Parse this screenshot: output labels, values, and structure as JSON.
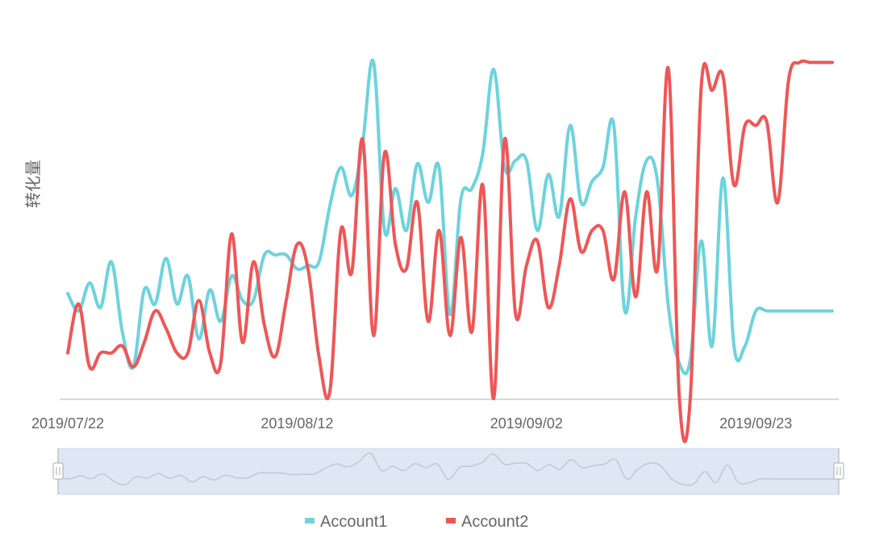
{
  "chart_data": {
    "type": "line",
    "ylabel": "转化量",
    "xlabel": "",
    "title": "",
    "grid": false,
    "legend_position": "bottom-center",
    "x_ticks": [
      "2019/07/22",
      "2019/08/12",
      "2019/09/02",
      "2019/09/23"
    ],
    "x": [
      "2019/07/22",
      "2019/07/23",
      "2019/07/24",
      "2019/07/25",
      "2019/07/26",
      "2019/07/27",
      "2019/07/28",
      "2019/07/29",
      "2019/07/30",
      "2019/07/31",
      "2019/08/01",
      "2019/08/02",
      "2019/08/03",
      "2019/08/04",
      "2019/08/05",
      "2019/08/06",
      "2019/08/07",
      "2019/08/08",
      "2019/08/09",
      "2019/08/10",
      "2019/08/11",
      "2019/08/12",
      "2019/08/13",
      "2019/08/14",
      "2019/08/15",
      "2019/08/16",
      "2019/08/17",
      "2019/08/18",
      "2019/08/19",
      "2019/08/20",
      "2019/08/21",
      "2019/08/22",
      "2019/08/23",
      "2019/08/24",
      "2019/08/25",
      "2019/08/26",
      "2019/08/27",
      "2019/08/28",
      "2019/08/29",
      "2019/08/30",
      "2019/08/31",
      "2019/09/01",
      "2019/09/02",
      "2019/09/03",
      "2019/09/04",
      "2019/09/05",
      "2019/09/06",
      "2019/09/07",
      "2019/09/08",
      "2019/09/09",
      "2019/09/10",
      "2019/09/11",
      "2019/09/12",
      "2019/09/13",
      "2019/09/14",
      "2019/09/15",
      "2019/09/16",
      "2019/09/17",
      "2019/09/18",
      "2019/09/19",
      "2019/09/20",
      "2019/09/21",
      "2019/09/22",
      "2019/09/23",
      "2019/09/24",
      "2019/09/25",
      "2019/09/26",
      "2019/09/27",
      "2019/09/28",
      "2019/09/29",
      "2019/09/30"
    ],
    "y_domain": [
      0,
      100
    ],
    "series": [
      {
        "name": "Account1",
        "color": "#6dd3dc",
        "values": [
          30,
          25,
          33,
          26,
          39,
          19,
          9,
          31,
          27,
          40,
          27,
          35,
          17,
          31,
          22,
          35,
          28,
          28,
          41,
          41,
          41,
          37,
          38,
          39,
          55,
          66,
          58,
          73,
          96,
          48,
          60,
          48,
          67,
          56,
          66,
          24,
          57,
          60,
          70,
          94,
          66,
          68,
          68,
          48,
          64,
          52,
          78,
          56,
          62,
          66,
          78,
          25,
          52,
          68,
          62,
          26,
          10,
          11,
          45,
          15,
          63,
          15,
          15,
          25,
          25,
          25,
          25,
          25,
          25,
          25,
          25
        ]
      },
      {
        "name": "Account2",
        "color": "#ef5656",
        "values": [
          13,
          27,
          9,
          13,
          13,
          15,
          9,
          16,
          25,
          20,
          13,
          13,
          28,
          13,
          10,
          47,
          16,
          39,
          21,
          12,
          28,
          44,
          37,
          12,
          2,
          48,
          36,
          74,
          18,
          70,
          44,
          37,
          56,
          22,
          48,
          18,
          46,
          19,
          61,
          0,
          74,
          24,
          38,
          45,
          26,
          38,
          57,
          42,
          48,
          48,
          34,
          59,
          29,
          59,
          37,
          94,
          0,
          0,
          89,
          88,
          92,
          61,
          78,
          78,
          79,
          56,
          91,
          96,
          96,
          96,
          96
        ]
      }
    ]
  },
  "legend": {
    "items": [
      {
        "label": "Account1",
        "color": "#6dd3dc"
      },
      {
        "label": "Account2",
        "color": "#ef5656"
      }
    ]
  },
  "zoom": {
    "start_fraction": 0,
    "end_fraction": 1
  },
  "colors": {
    "axis": "#cccccc",
    "tick_text": "#666666",
    "slider_fill": "#dfe7f5",
    "slider_line": "#bfc8d6",
    "slider_border": "#d2dbe8",
    "handle_fill": "#ffffff",
    "handle_stroke": "#aaaaaa"
  }
}
